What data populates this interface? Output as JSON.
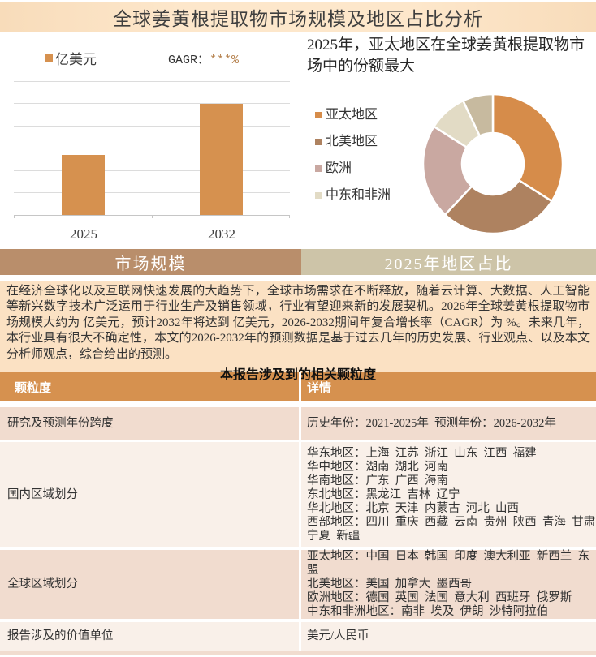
{
  "page": {
    "title": "全球姜黄根提取物市场规模及地区占比分析"
  },
  "tabs": {
    "left": "市场规模",
    "right": "2025年地区占比"
  },
  "bar_section": {
    "legend_label": "亿美元",
    "cagr_prefix": "GAGR：",
    "cagr_value": "***%",
    "bar_color": "#d6914f"
  },
  "pie_section": {
    "title": "2025年，亚太地区在全球姜黄根提取物市场中的份额最大",
    "legend_items": [
      {
        "label": "亚太地区"
      },
      {
        "label": "北美地区"
      },
      {
        "label": "欧洲"
      },
      {
        "label": "中东和非洲"
      }
    ]
  },
  "report": {
    "paragraph": "在经济全球化以及互联网快速发展的大趋势下，全球市场需求在不断释放，随着云计算、大数据、人工智能等新兴数字技术广泛运用于行业生产及销售领域，行业有望迎来新的发展契机。2026年全球姜黄根提取物市场规模大约为 亿美元，预计2032年将达到 亿美元，2026-2032期间年复合增长率（CAGR）为 %。未来几年，本行业具有很大不确定性，本文的2026-2032年的预测数据是基于过去几年的历史发展、行业观点、以及本文分析师观点，综合给出的预测。"
  },
  "table": {
    "title": "本报告涉及到的相关颗粒度",
    "headers": [
      "颗粒度",
      "详情"
    ],
    "rows": [
      {
        "granularity": "研究及预测年份跨度",
        "detail": "历史年份：2021-2025年  预测年份：2026-2032年"
      },
      {
        "granularity": "国内区域划分",
        "detail": "华东地区：上海  江苏  浙江  山东  江西  福建\n华中地区：湖南  湖北  河南\n华南地区：广东  广西  海南\n东北地区：黑龙江  吉林  辽宁\n华北地区：北京  天津  内蒙古  河北  山西\n西部地区：四川  重庆  西藏  云南  贵州  陕西  青海  甘肃  宁夏  新疆"
      },
      {
        "granularity": "全球区域划分",
        "detail": "亚太地区：中国  日本  韩国  印度  澳大利亚  新西兰  东盟\n北美地区：美国  加拿大  墨西哥\n欧洲地区：德国  英国  法国  意大利  西班牙  俄罗斯\n中东和非洲地区：南非  埃及  伊朗  沙特阿拉伯"
      },
      {
        "granularity": "报告涉及的价值单位",
        "detail": "美元/人民币"
      }
    ]
  },
  "colors": {
    "accent_orange": "#d6914f",
    "tab_left_bg": "#b98e6b",
    "tab_right_bg": "#cdc4a8",
    "title_bar_bg": "#fce3c5",
    "paragraph_bg": "#fbe1c3",
    "row_dark": "#f1dccf",
    "row_light": "#f9f0e9"
  },
  "chart_data": [
    {
      "type": "bar",
      "title": "",
      "categories": [
        "2025",
        "2032"
      ],
      "values": [
        "***",
        "***"
      ],
      "values_masked": true,
      "relative_heights": [
        0.45,
        0.83
      ],
      "unit_label": "亿美元",
      "annotation": "GAGR：***%",
      "bar_color": "#d6914f",
      "grid": true,
      "legend_position": "top-left"
    },
    {
      "type": "pie",
      "subtype": "donut",
      "title": "2025年，亚太地区在全球姜黄根提取物市场中的份额最大",
      "slices": [
        {
          "label": "亚太地区",
          "share_pct": 34,
          "color": "#d68c4a"
        },
        {
          "label": "北美地区",
          "share_pct": 28,
          "color": "#ae8260"
        },
        {
          "label": "欧洲",
          "share_pct": 22,
          "color": "#c9a8a1"
        },
        {
          "label": "中东和非洲",
          "share_pct": 9,
          "color": "#e2dbc5"
        },
        {
          "label": "",
          "share_pct": 7,
          "color": "#c7ba9f"
        }
      ],
      "legend_position": "left",
      "legend_visible_labels": [
        "亚太地区",
        "北美地区",
        "欧洲",
        "中东和非洲"
      ]
    }
  ]
}
